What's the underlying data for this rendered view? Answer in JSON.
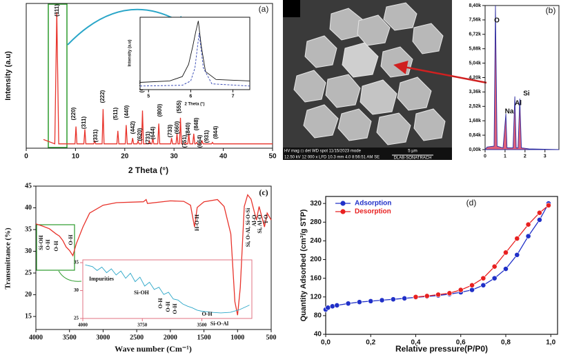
{
  "chart_data": [
    {
      "type": "line",
      "panel_label": "(a)",
      "xlabel": "2 Theta (°)",
      "ylabel": "Intensity (a.u)",
      "xlim": [
        0,
        50
      ],
      "xticks": [
        0,
        10,
        20,
        30,
        40,
        50
      ],
      "ylim": [
        0,
        100
      ],
      "series": [
        {
          "color": "#e8322a",
          "x": [
            3.5,
            5.8,
            6.2,
            6.6,
            9.9,
            10.1,
            10.3,
            11.7,
            11.9,
            12.1,
            13.7,
            13.9,
            14.1,
            15.4,
            15.6,
            15.8,
            18.4,
            18.6,
            18.8,
            20.1,
            20.3,
            20.5,
            21.4,
            21.6,
            21.8,
            22.5,
            22.7,
            22.9,
            23.4,
            23.6,
            23.8,
            24.8,
            25.0,
            25.2,
            25.5,
            25.7,
            25.9,
            26.7,
            26.9,
            27.1,
            29.3,
            29.5,
            29.7,
            30.4,
            30.6,
            30.8,
            31.1,
            31.3,
            31.5,
            32.1,
            32.3,
            32.5,
            32.8,
            33.0,
            33.2,
            33.8,
            34.0,
            34.2,
            34.4,
            34.6,
            34.8,
            35.5,
            35.7,
            35.9,
            37.6,
            37.8,
            38.0,
            41,
            50
          ],
          "values": [
            6,
            3,
            94,
            3,
            3,
            15,
            3,
            3,
            13,
            3,
            3,
            5,
            3,
            3,
            27,
            3,
            3,
            12,
            3,
            3,
            16,
            3,
            3,
            7,
            3,
            3,
            5,
            3,
            3,
            26,
            3,
            3,
            5,
            3,
            3,
            7,
            3,
            3,
            17,
            3,
            3,
            7,
            3,
            3,
            10,
            3,
            3,
            21,
            3,
            3,
            4,
            3,
            3,
            10,
            3,
            3,
            10,
            3,
            3,
            4,
            3,
            3,
            5,
            3,
            3,
            4,
            3,
            3,
            3
          ]
        }
      ],
      "annotations": [
        "(111)",
        "(220)",
        "(311)",
        "(331)",
        "(222)",
        "(511)",
        "(440)",
        "(442)",
        "(620)",
        "(642)",
        "(731)",
        "(644)",
        "(800)",
        "(733)",
        "(660)",
        "(555)",
        "(751)",
        "(840)",
        "(848)",
        "(664)",
        "(931)",
        "(844)"
      ]
    },
    {
      "type": "line",
      "xlabel": "2 Theta (°)",
      "ylabel": "Intensity (a.u)",
      "xlim": [
        4.8,
        7.4
      ],
      "xticks": [
        5,
        6,
        7
      ],
      "ylim": [
        0,
        100
      ],
      "series": [
        {
          "color": "#111111",
          "style": "solid",
          "x": [
            4.8,
            5.5,
            5.8,
            5.95,
            6.05,
            6.12,
            6.18,
            6.25,
            6.35,
            6.6,
            7.4
          ],
          "values": [
            10,
            12,
            18,
            35,
            60,
            80,
            95,
            60,
            25,
            14,
            12
          ]
        },
        {
          "color": "#2b3fb0",
          "style": "dashed",
          "x": [
            4.8,
            5.8,
            6.0,
            6.1,
            6.2,
            6.3,
            6.5,
            7.4
          ],
          "values": [
            5,
            6,
            12,
            30,
            78,
            30,
            8,
            5
          ]
        }
      ]
    },
    {
      "type": "line",
      "panel_label": "(b)",
      "xlim": [
        0,
        3.7
      ],
      "xticks": [
        0,
        1,
        2,
        3
      ],
      "ylim": [
        0,
        8400
      ],
      "yticks": [
        {
          "value": 0,
          "label": "0,00k"
        },
        {
          "value": 840,
          "label": "0,84k"
        },
        {
          "value": 1680,
          "label": "1,68k"
        },
        {
          "value": 2520,
          "label": "2,52k"
        },
        {
          "value": 3360,
          "label": "3,36k"
        },
        {
          "value": 4200,
          "label": "4,20k"
        },
        {
          "value": 5040,
          "label": "5,04k"
        },
        {
          "value": 5880,
          "label": "5,88k"
        },
        {
          "value": 6720,
          "label": "6,72k"
        },
        {
          "value": 7560,
          "label": "7,56k"
        },
        {
          "value": 8400,
          "label": "8,40k"
        }
      ],
      "series": [
        {
          "color": "#2a2aa0",
          "fill": "#e0607a",
          "x": [
            0,
            0.1,
            0.45,
            0.52,
            0.6,
            0.9,
            1.04,
            1.1,
            1.4,
            1.49,
            1.56,
            1.65,
            1.74,
            1.82,
            2.2,
            3.7
          ],
          "values": [
            0,
            150,
            200,
            8400,
            200,
            100,
            2090,
            100,
            100,
            3100,
            100,
            100,
            2970,
            100,
            40,
            0
          ]
        }
      ],
      "annotations": [
        "O",
        "Na",
        "Al",
        "Si"
      ]
    },
    {
      "type": "line",
      "panel_label": "(c)",
      "xlabel": "Wave number (Cm⁻¹)",
      "ylabel": "Transmittance (%)",
      "xlim": [
        4000,
        500
      ],
      "xticks": [
        4000,
        3500,
        3000,
        2500,
        2000,
        1500,
        1000,
        500
      ],
      "ylim": [
        12,
        45
      ],
      "yticks": [
        15,
        20,
        25,
        30,
        35,
        40,
        45
      ],
      "series": [
        {
          "color": "#e8322a",
          "x": [
            4000,
            3900,
            3800,
            3700,
            3650,
            3600,
            3550,
            3500,
            3450,
            3400,
            3300,
            3200,
            3000,
            2800,
            2400,
            2360,
            2340,
            2000,
            1800,
            1700,
            1640,
            1600,
            1500,
            1300,
            1200,
            1100,
            1040,
            1000,
            960,
            900,
            850,
            800,
            720,
            680,
            600,
            560,
            500
          ],
          "values": [
            36.3,
            35.8,
            35.2,
            34,
            33.5,
            32.5,
            31,
            30.2,
            29,
            31.7,
            35.6,
            38.8,
            40.6,
            41.2,
            41.4,
            41.9,
            41,
            41.6,
            41.5,
            40.6,
            35.6,
            40.1,
            41.4,
            41.9,
            40.3,
            34,
            18.4,
            15.3,
            21.6,
            40.3,
            43,
            42,
            37.2,
            40.3,
            35.6,
            38.8,
            37.2
          ]
        }
      ],
      "annotations": [
        "Si-OH",
        "O-H",
        "O-H",
        "O-H",
        "H-O-H",
        "Si-O-Al",
        "Si, O-Al, Si-O-Si",
        "Al-O",
        "Si, Al-O",
        "T-O"
      ]
    },
    {
      "type": "line",
      "xlim": [
        4000,
        3290
      ],
      "xticks": [
        4000,
        3750,
        3500
      ],
      "ylim": [
        25,
        35.5
      ],
      "yticks": [
        25,
        30,
        35
      ],
      "series": [
        {
          "color": "#2aa6c8",
          "x": [
            3990,
            3960,
            3940,
            3920,
            3900,
            3880,
            3860,
            3840,
            3820,
            3800,
            3780,
            3760,
            3740,
            3720,
            3700,
            3680,
            3660,
            3640,
            3620,
            3600,
            3580,
            3560,
            3540,
            3520,
            3500,
            3460,
            3420,
            3380,
            3340,
            3300
          ],
          "values": [
            34.6,
            34.3,
            33.6,
            34.2,
            33.2,
            33.9,
            32.8,
            33.5,
            32.2,
            33.1,
            31.6,
            32.4,
            30.8,
            31.5,
            30.2,
            30.6,
            29.3,
            29.7,
            28.5,
            28.3,
            27.6,
            27.2,
            26.9,
            26.5,
            26.3,
            26.1,
            26,
            26.1,
            26.6,
            27.4
          ]
        }
      ],
      "annotations": [
        "Impurities",
        "Si-OH",
        "O-H",
        "O-H",
        "O-H",
        "O-H"
      ]
    },
    {
      "type": "line",
      "panel_label": "(d)",
      "xlabel": "Relative pressure(P/P0)",
      "ylabel": "Quantity Adsorbed (cm³/g STP)",
      "xlim": [
        0,
        1.03
      ],
      "xticks": [
        {
          "value": 0,
          "label": "0,0"
        },
        {
          "value": 0.2,
          "label": "0,2"
        },
        {
          "value": 0.4,
          "label": "0,4"
        },
        {
          "value": 0.6,
          "label": "0,6"
        },
        {
          "value": 0.8,
          "label": "0,8"
        },
        {
          "value": 1,
          "label": "1,0"
        }
      ],
      "ylim": [
        40,
        335
      ],
      "yticks": [
        40,
        80,
        120,
        160,
        200,
        240,
        280,
        320
      ],
      "markers": true,
      "legend": "upper left",
      "series": [
        {
          "name": "Adsorption",
          "color": "#2030c8",
          "x": [
            0.0,
            0.01,
            0.03,
            0.05,
            0.1,
            0.15,
            0.2,
            0.25,
            0.3,
            0.35,
            0.4,
            0.45,
            0.5,
            0.55,
            0.6,
            0.65,
            0.7,
            0.75,
            0.8,
            0.85,
            0.9,
            0.95,
            0.99
          ],
          "values": [
            93,
            97,
            100,
            102,
            106,
            109,
            111,
            113,
            115,
            117,
            119,
            121,
            123,
            126,
            130,
            135,
            145,
            160,
            180,
            210,
            250,
            285,
            320
          ]
        },
        {
          "name": "Desorption",
          "color": "#e82020",
          "x": [
            0.99,
            0.95,
            0.9,
            0.85,
            0.8,
            0.75,
            0.7,
            0.65,
            0.6,
            0.55,
            0.5,
            0.45,
            0.4
          ],
          "values": [
            316,
            300,
            275,
            245,
            215,
            185,
            160,
            145,
            135,
            128,
            125,
            122,
            120
          ]
        }
      ]
    }
  ],
  "sem_image": {
    "caption": {
      "row1": "HV    mag ◻   det   WD    spot 11/15/2023  mode",
      "row2": "12.50 kV 12 000 x LFD 10.3 mm 4.0  8:56:51 AM  SE",
      "scale": "5 µm",
      "lab": "DLAB-SONATRACH"
    }
  }
}
